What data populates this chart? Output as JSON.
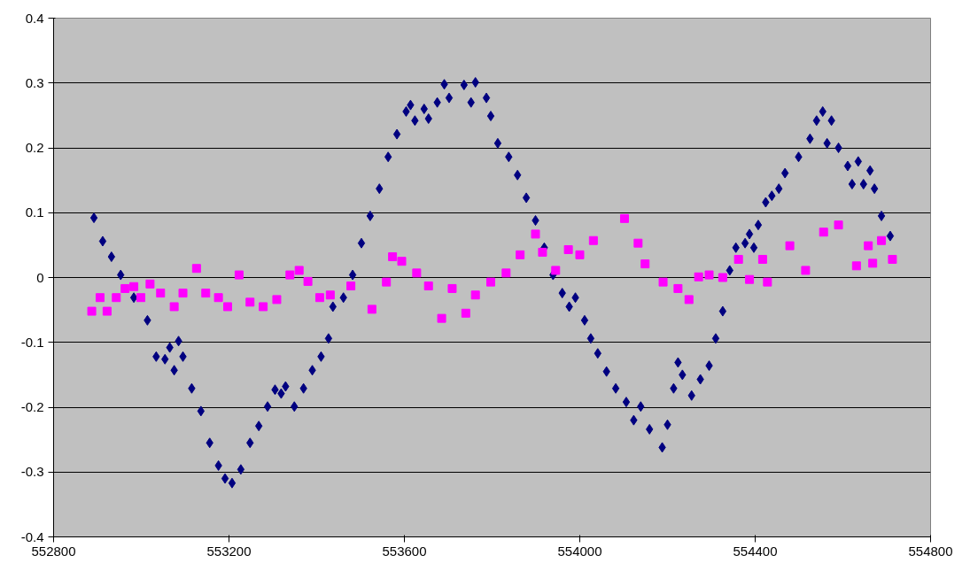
{
  "chart_data": {
    "type": "scatter",
    "xlim": [
      552800,
      554800
    ],
    "xticks": [
      552800,
      553200,
      553600,
      554000,
      554400,
      554800
    ],
    "ylim": [
      -0.4,
      0.4
    ],
    "yticks": [
      -0.4,
      -0.3,
      -0.2,
      -0.1,
      0,
      0.1,
      0.2,
      0.3,
      0.4
    ],
    "grid": "y",
    "series": [
      {
        "color": "#000080",
        "marker": "diamond",
        "x": [
          552892,
          552912,
          552932,
          552953,
          552983,
          553014,
          553034,
          553054,
          553065,
          553075,
          553085,
          553095,
          553115,
          553136,
          553156,
          553176,
          553191,
          553207,
          553227,
          553248,
          553268,
          553288,
          553305,
          553319,
          553329,
          553349,
          553370,
          553390,
          553410,
          553427,
          553437,
          553461,
          553482,
          553502,
          553522,
          553543,
          553563,
          553583,
          553604,
          553614,
          553624,
          553645,
          553655,
          553675,
          553691,
          553702,
          553736,
          553752,
          553762,
          553787,
          553797,
          553813,
          553838,
          553858,
          553878,
          553899,
          553919,
          553939,
          553960,
          553976,
          553990,
          554011,
          554025,
          554041,
          554061,
          554082,
          554106,
          554123,
          554139,
          554159,
          554188,
          554200,
          554214,
          554224,
          554234,
          554255,
          554275,
          554295,
          554310,
          554326,
          554342,
          554356,
          554377,
          554387,
          554397,
          554407,
          554424,
          554438,
          554454,
          554468,
          554499,
          554525,
          554540,
          554554,
          554564,
          554574,
          554590,
          554611,
          554621,
          554635,
          554647,
          554662,
          554672,
          554688,
          554708
        ],
        "values": [
          0.092,
          0.056,
          0.032,
          0.004,
          -0.031,
          -0.066,
          -0.122,
          -0.126,
          -0.108,
          -0.143,
          -0.098,
          -0.122,
          -0.171,
          -0.206,
          -0.255,
          -0.29,
          -0.31,
          -0.317,
          -0.296,
          -0.255,
          -0.229,
          -0.199,
          -0.173,
          -0.179,
          -0.168,
          -0.199,
          -0.171,
          -0.143,
          -0.122,
          -0.094,
          -0.045,
          -0.031,
          0.004,
          0.053,
          0.095,
          0.137,
          0.186,
          0.221,
          0.256,
          0.266,
          0.242,
          0.26,
          0.245,
          0.27,
          0.298,
          0.277,
          0.297,
          0.27,
          0.301,
          0.277,
          0.249,
          0.207,
          0.186,
          0.158,
          0.123,
          0.088,
          0.046,
          0.004,
          -0.024,
          -0.045,
          -0.031,
          -0.066,
          -0.094,
          -0.117,
          -0.145,
          -0.171,
          -0.192,
          -0.22,
          -0.199,
          -0.234,
          -0.262,
          -0.227,
          -0.171,
          -0.131,
          -0.15,
          -0.182,
          -0.157,
          -0.136,
          -0.094,
          -0.052,
          0.011,
          0.046,
          0.053,
          0.067,
          0.046,
          0.081,
          0.116,
          0.126,
          0.137,
          0.161,
          0.186,
          0.214,
          0.242,
          0.256,
          0.207,
          0.242,
          0.2,
          0.172,
          0.144,
          0.179,
          0.144,
          0.165,
          0.137,
          0.095,
          0.064
        ]
      },
      {
        "color": "#ff00ff",
        "marker": "square",
        "x": [
          552887,
          552906,
          552922,
          552943,
          552963,
          552983,
          552999,
          553020,
          553044,
          553075,
          553095,
          553126,
          553147,
          553176,
          553197,
          553223,
          553248,
          553278,
          553309,
          553339,
          553360,
          553380,
          553407,
          553431,
          553478,
          553526,
          553559,
          553573,
          553594,
          553628,
          553655,
          553685,
          553709,
          553740,
          553762,
          553797,
          553832,
          553864,
          553899,
          553915,
          553945,
          553974,
          554000,
          554031,
          554102,
          554133,
          554149,
          554190,
          554224,
          554249,
          554271,
          554295,
          554326,
          554362,
          554387,
          554417,
          554428,
          554479,
          554515,
          554556,
          554590,
          554631,
          554658,
          554668,
          554688,
          554713
        ],
        "values": [
          -0.052,
          -0.031,
          -0.052,
          -0.031,
          -0.017,
          -0.014,
          -0.031,
          -0.01,
          -0.024,
          -0.045,
          -0.024,
          0.014,
          -0.024,
          -0.031,
          -0.045,
          0.004,
          -0.038,
          -0.045,
          -0.034,
          0.004,
          0.011,
          -0.006,
          -0.031,
          -0.027,
          -0.013,
          -0.049,
          -0.007,
          0.032,
          0.025,
          0.007,
          -0.013,
          -0.063,
          -0.017,
          -0.055,
          -0.027,
          -0.007,
          0.007,
          0.035,
          0.067,
          0.039,
          0.011,
          0.043,
          0.035,
          0.057,
          0.091,
          0.053,
          0.021,
          -0.007,
          -0.017,
          -0.034,
          0.001,
          0.004,
          0.0,
          0.028,
          -0.003,
          0.028,
          -0.007,
          0.049,
          0.011,
          0.07,
          0.081,
          0.018,
          0.049,
          0.022,
          0.057,
          0.028
        ]
      }
    ]
  }
}
